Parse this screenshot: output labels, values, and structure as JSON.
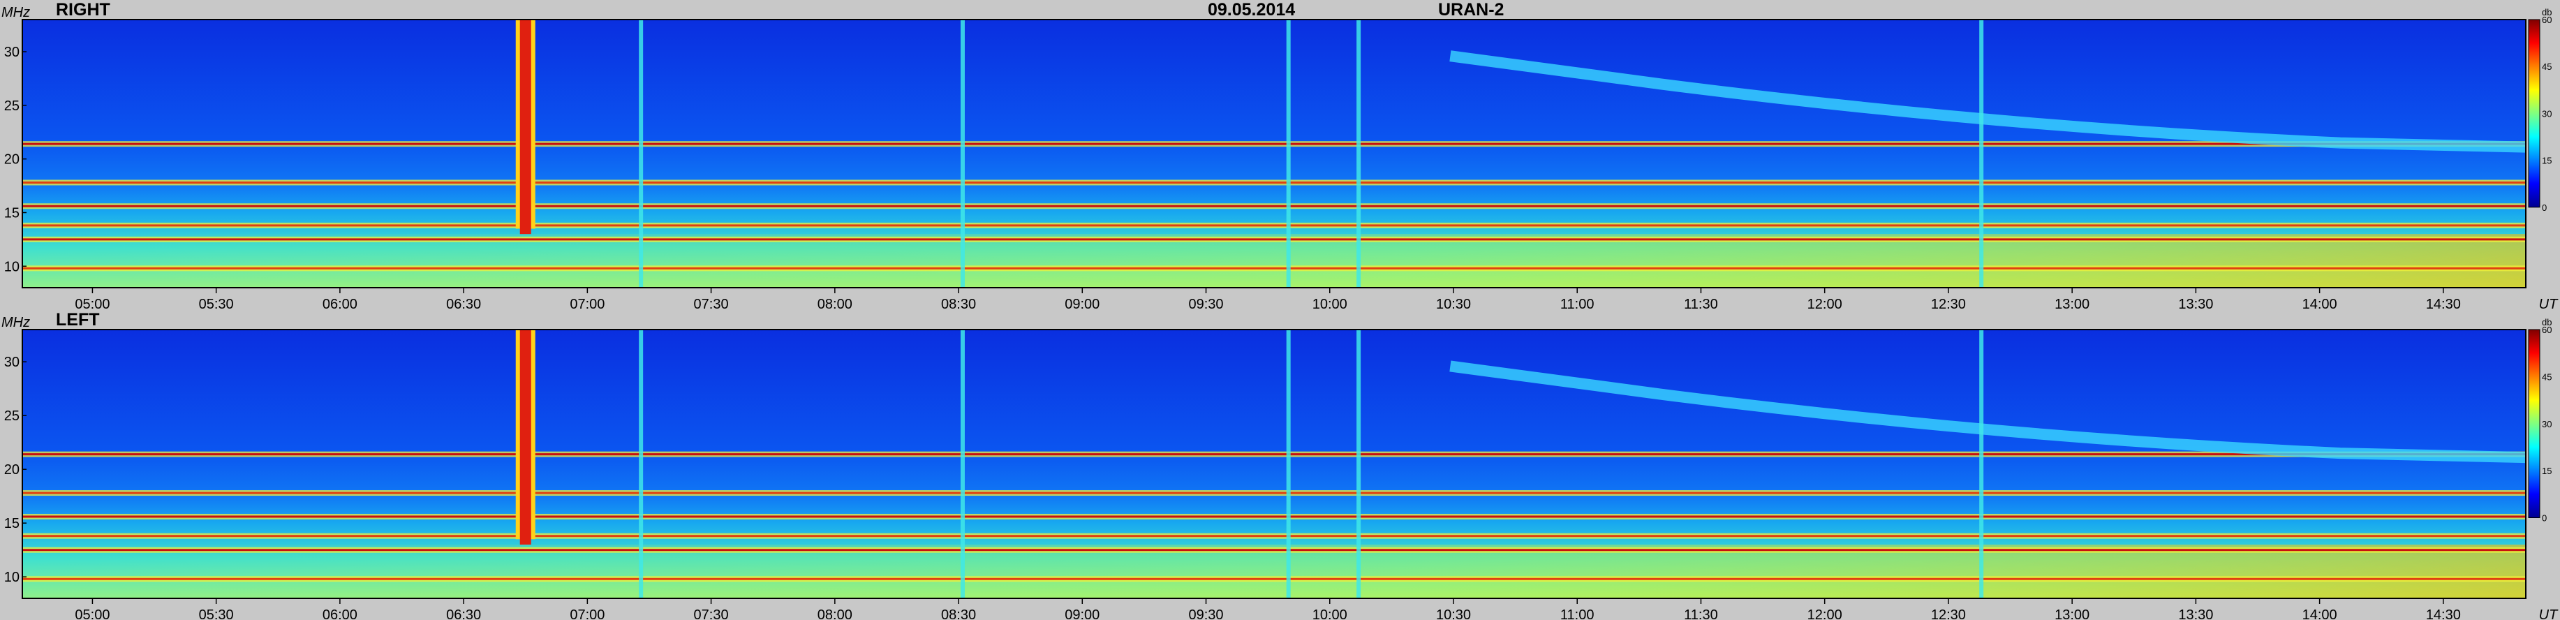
{
  "header": {
    "date": "09.05.2014",
    "instrument": "URAN-2"
  },
  "colors": {
    "background": "#c8c8c8",
    "colormap": [
      "#00008f",
      "#0000ff",
      "#0080ff",
      "#00ffff",
      "#80ff80",
      "#ffff00",
      "#ff8000",
      "#ff0000",
      "#800000"
    ]
  },
  "chart_data": [
    {
      "type": "heatmap",
      "title": "RIGHT",
      "xlabel": "UT",
      "ylabel": "MHz",
      "x_ticks": [
        "05:00",
        "05:30",
        "06:00",
        "06:30",
        "07:00",
        "07:30",
        "08:00",
        "08:30",
        "09:00",
        "09:30",
        "10:00",
        "10:30",
        "11:00",
        "11:30",
        "12:00",
        "12:30",
        "13:00",
        "13:30",
        "14:00",
        "14:30"
      ],
      "x_range": [
        "04:43",
        "14:50"
      ],
      "y_ticks": [
        10,
        15,
        20,
        25,
        30
      ],
      "y_range": [
        8,
        33
      ],
      "colorbar": {
        "label": "db",
        "ticks": [
          0,
          15,
          30,
          45,
          60
        ],
        "range": [
          0,
          60
        ]
      },
      "features": {
        "bursts_UT": [
          "06:45",
          "07:13",
          "08:31",
          "09:50",
          "10:07",
          "12:38"
        ],
        "strongest_burst_UT": "06:45",
        "persistent_bands_MHz": [
          9.8,
          12.5,
          13.8,
          15.6,
          17.8,
          21.4
        ],
        "drifting_band": {
          "from": {
            "t": "11:20",
            "f": 27
          },
          "to": {
            "t": "14:05",
            "f": 21.5
          }
        }
      }
    },
    {
      "type": "heatmap",
      "title": "LEFT",
      "xlabel": "UT",
      "ylabel": "MHz",
      "x_ticks": [
        "05:00",
        "05:30",
        "06:00",
        "06:30",
        "07:00",
        "07:30",
        "08:00",
        "08:30",
        "09:00",
        "09:30",
        "10:00",
        "10:30",
        "11:00",
        "11:30",
        "12:00",
        "12:30",
        "13:00",
        "13:30",
        "14:00",
        "14:30"
      ],
      "x_range": [
        "04:43",
        "14:50"
      ],
      "y_ticks": [
        10,
        15,
        20,
        25,
        30
      ],
      "y_range": [
        8,
        33
      ],
      "colorbar": {
        "label": "db",
        "ticks": [
          0,
          15,
          30,
          45,
          60
        ],
        "range": [
          0,
          60
        ]
      },
      "features": {
        "bursts_UT": [
          "06:45",
          "07:13",
          "08:31",
          "09:50",
          "10:07",
          "12:38"
        ],
        "strongest_burst_UT": "06:45",
        "persistent_bands_MHz": [
          9.8,
          12.5,
          13.8,
          15.6,
          17.8,
          21.4
        ],
        "drifting_band": {
          "from": {
            "t": "11:20",
            "f": 27
          },
          "to": {
            "t": "14:05",
            "f": 21.5
          }
        }
      }
    }
  ]
}
